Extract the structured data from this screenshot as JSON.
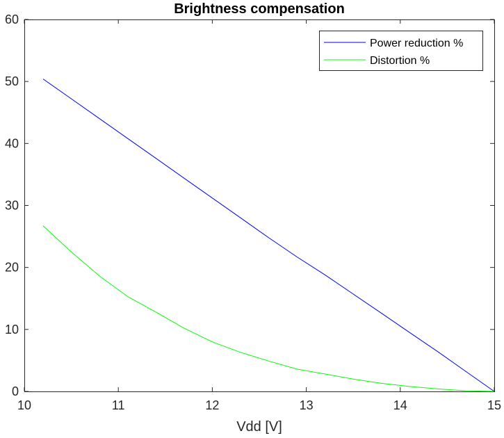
{
  "chart_data": {
    "type": "line",
    "title": "Brightness compensation",
    "xlabel": "Vdd [V]",
    "ylabel": "",
    "xlim": [
      10,
      15
    ],
    "ylim": [
      0,
      60
    ],
    "xticks": [
      "10",
      "11",
      "12",
      "13",
      "14",
      "15"
    ],
    "yticks": [
      "0",
      "10",
      "20",
      "30",
      "40",
      "50",
      "60"
    ],
    "grid": false,
    "legend_position": "top-right",
    "series": [
      {
        "name": "Power reduction %",
        "color": "#0000ff",
        "x": [
          10.2,
          10.5,
          10.8,
          11.1,
          11.4,
          11.7,
          12.0,
          12.3,
          12.6,
          12.9,
          13.2,
          13.5,
          13.8,
          14.1,
          14.4,
          14.7,
          15.0
        ],
        "y": [
          50.4,
          47.2,
          44.0,
          40.8,
          37.6,
          34.4,
          31.2,
          28.0,
          24.8,
          21.7,
          18.8,
          15.7,
          12.6,
          9.5,
          6.4,
          3.2,
          0.0
        ]
      },
      {
        "name": "Distortion %",
        "color": "#00ff00",
        "x": [
          10.2,
          10.5,
          10.8,
          11.1,
          11.4,
          11.7,
          12.0,
          12.3,
          12.6,
          12.9,
          13.2,
          13.5,
          13.8,
          14.1,
          14.4,
          14.7,
          15.0
        ],
        "y": [
          26.7,
          22.5,
          18.6,
          15.3,
          12.8,
          10.2,
          8.0,
          6.3,
          4.9,
          3.6,
          2.8,
          2.0,
          1.3,
          0.8,
          0.4,
          0.1,
          0.0
        ]
      }
    ]
  }
}
